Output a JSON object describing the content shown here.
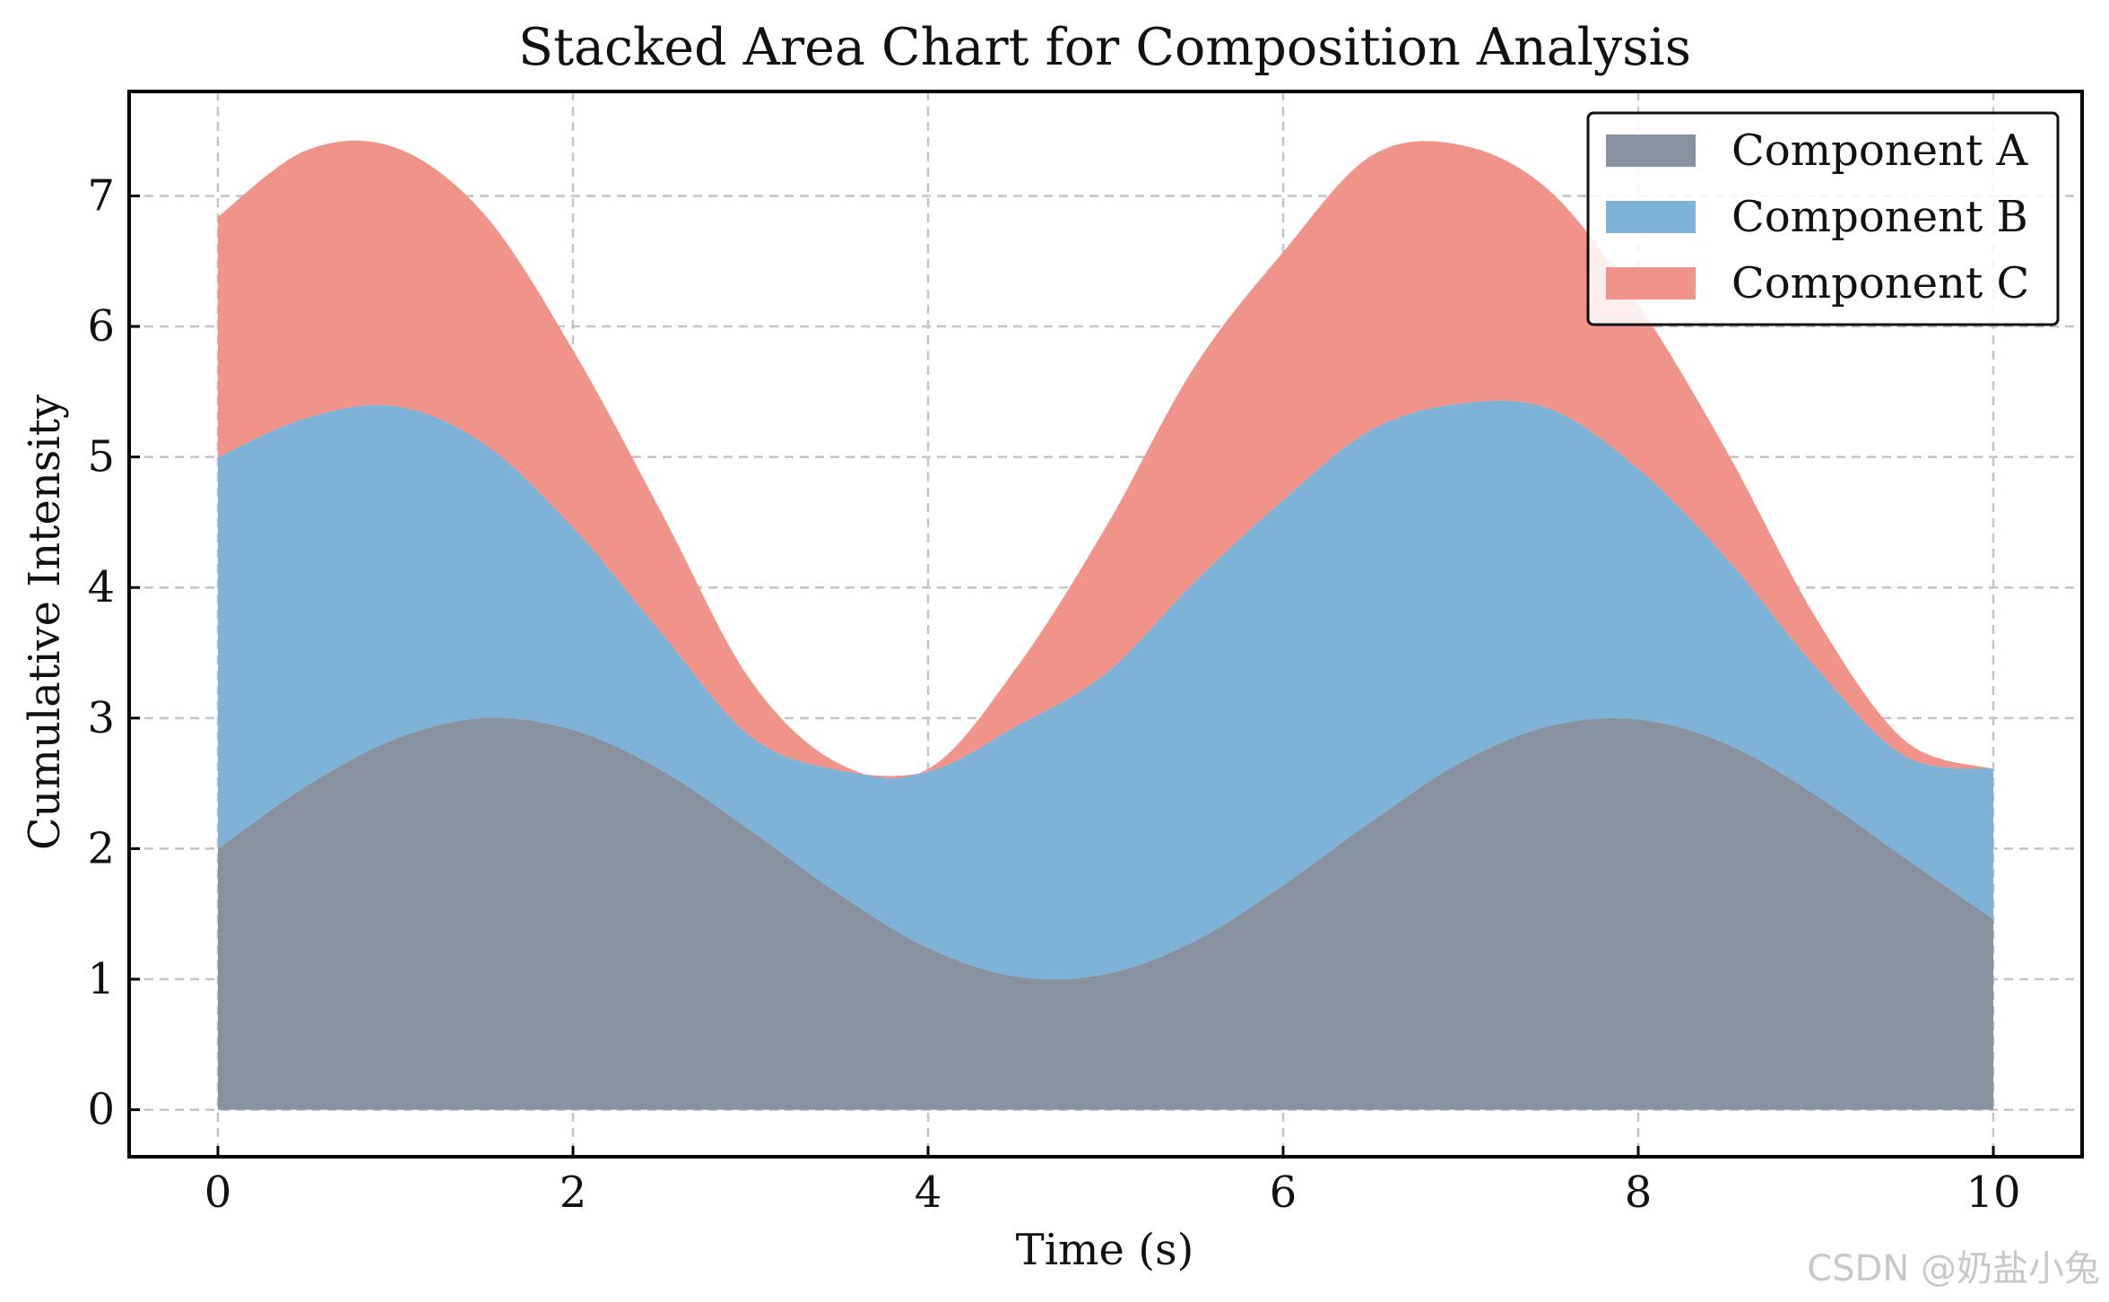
{
  "watermark": "CSDN @奶盐小兔",
  "chart_data": {
    "type": "area",
    "stacked": true,
    "title": "Stacked Area Chart for Composition Analysis",
    "xlabel": "Time (s)",
    "ylabel": "Cumulative Intensity",
    "xlim": [
      -0.5,
      10.5
    ],
    "ylim": [
      -0.36,
      7.8
    ],
    "xticks": [
      0,
      2,
      4,
      6,
      8,
      10
    ],
    "yticks": [
      0,
      1,
      2,
      3,
      4,
      5,
      6,
      7
    ],
    "grid": true,
    "legend_position": "top-right",
    "x": [
      0,
      0.5,
      1,
      1.5,
      2,
      2.5,
      3,
      3.5,
      4,
      4.5,
      5,
      5.5,
      6,
      6.5,
      7,
      7.5,
      8,
      8.5,
      9,
      9.5,
      10
    ],
    "series": [
      {
        "name": "Component A",
        "color": "#8791a0",
        "values": [
          2.0,
          2.48,
          2.84,
          3.0,
          2.91,
          2.6,
          2.14,
          1.65,
          1.24,
          1.02,
          1.04,
          1.29,
          1.72,
          2.21,
          2.66,
          2.94,
          2.99,
          2.8,
          2.41,
          1.93,
          1.46
        ]
      },
      {
        "name": "Component B",
        "color": "#7eb2d6",
        "values": [
          3.0,
          2.82,
          2.55,
          2.1,
          1.55,
          1.05,
          0.72,
          0.95,
          1.35,
          1.92,
          2.3,
          2.75,
          2.95,
          3.0,
          2.75,
          2.43,
          1.92,
          1.42,
          0.98,
          0.78,
          1.15
        ]
      },
      {
        "name": "Component C",
        "color": "#f0938a",
        "values": [
          1.84,
          2.05,
          1.98,
          1.76,
          1.36,
          0.92,
          0.43,
          0.05,
          0.02,
          0.45,
          1.12,
          1.65,
          1.9,
          2.1,
          1.98,
          1.67,
          1.26,
          0.82,
          0.38,
          0.12,
          0.0
        ]
      }
    ]
  }
}
